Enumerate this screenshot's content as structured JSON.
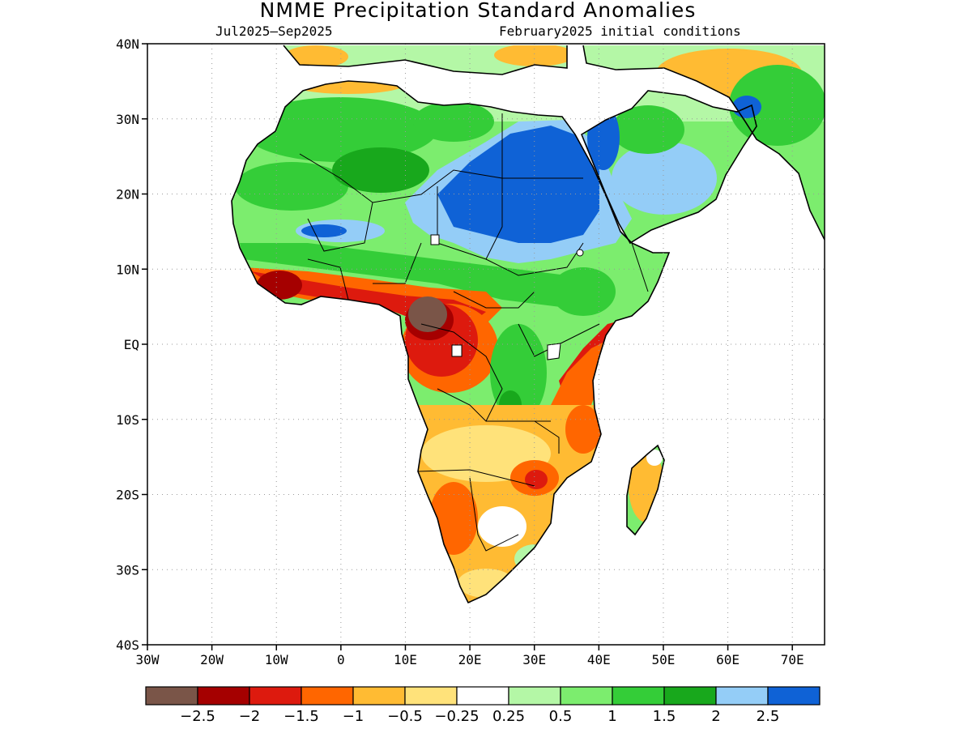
{
  "title": "NMME Precipitation Standard Anomalies",
  "subtitle_left": "Jul2025–Sep2025",
  "subtitle_right": "February2025 initial conditions",
  "map": {
    "region": "Africa and Arabian Peninsula",
    "lon_range": [
      -30,
      75
    ],
    "lat_range": [
      -40,
      40
    ],
    "lat_ticks": [
      "40N",
      "30N",
      "20N",
      "10N",
      "EQ",
      "10S",
      "20S",
      "30S",
      "40S"
    ],
    "lon_ticks": [
      "30W",
      "20W",
      "10W",
      "0",
      "10E",
      "20E",
      "30E",
      "40E",
      "50E",
      "60E",
      "70E"
    ],
    "grid": "dotted"
  },
  "legend": {
    "colors": [
      "#7a5548",
      "#a50000",
      "#dd1a0e",
      "#ff6600",
      "#ffbb33",
      "#ffe27a",
      "#ffffff",
      "#b4f7a6",
      "#7ced6e",
      "#34cd38",
      "#18a81c",
      "#94cdf7",
      "#0f62d6"
    ],
    "labels": [
      "−2.5",
      "−2",
      "−1.5",
      "−1",
      "−0.5",
      "−0.25",
      "0.25",
      "0.5",
      "1",
      "1.5",
      "2",
      "2.5"
    ]
  }
}
